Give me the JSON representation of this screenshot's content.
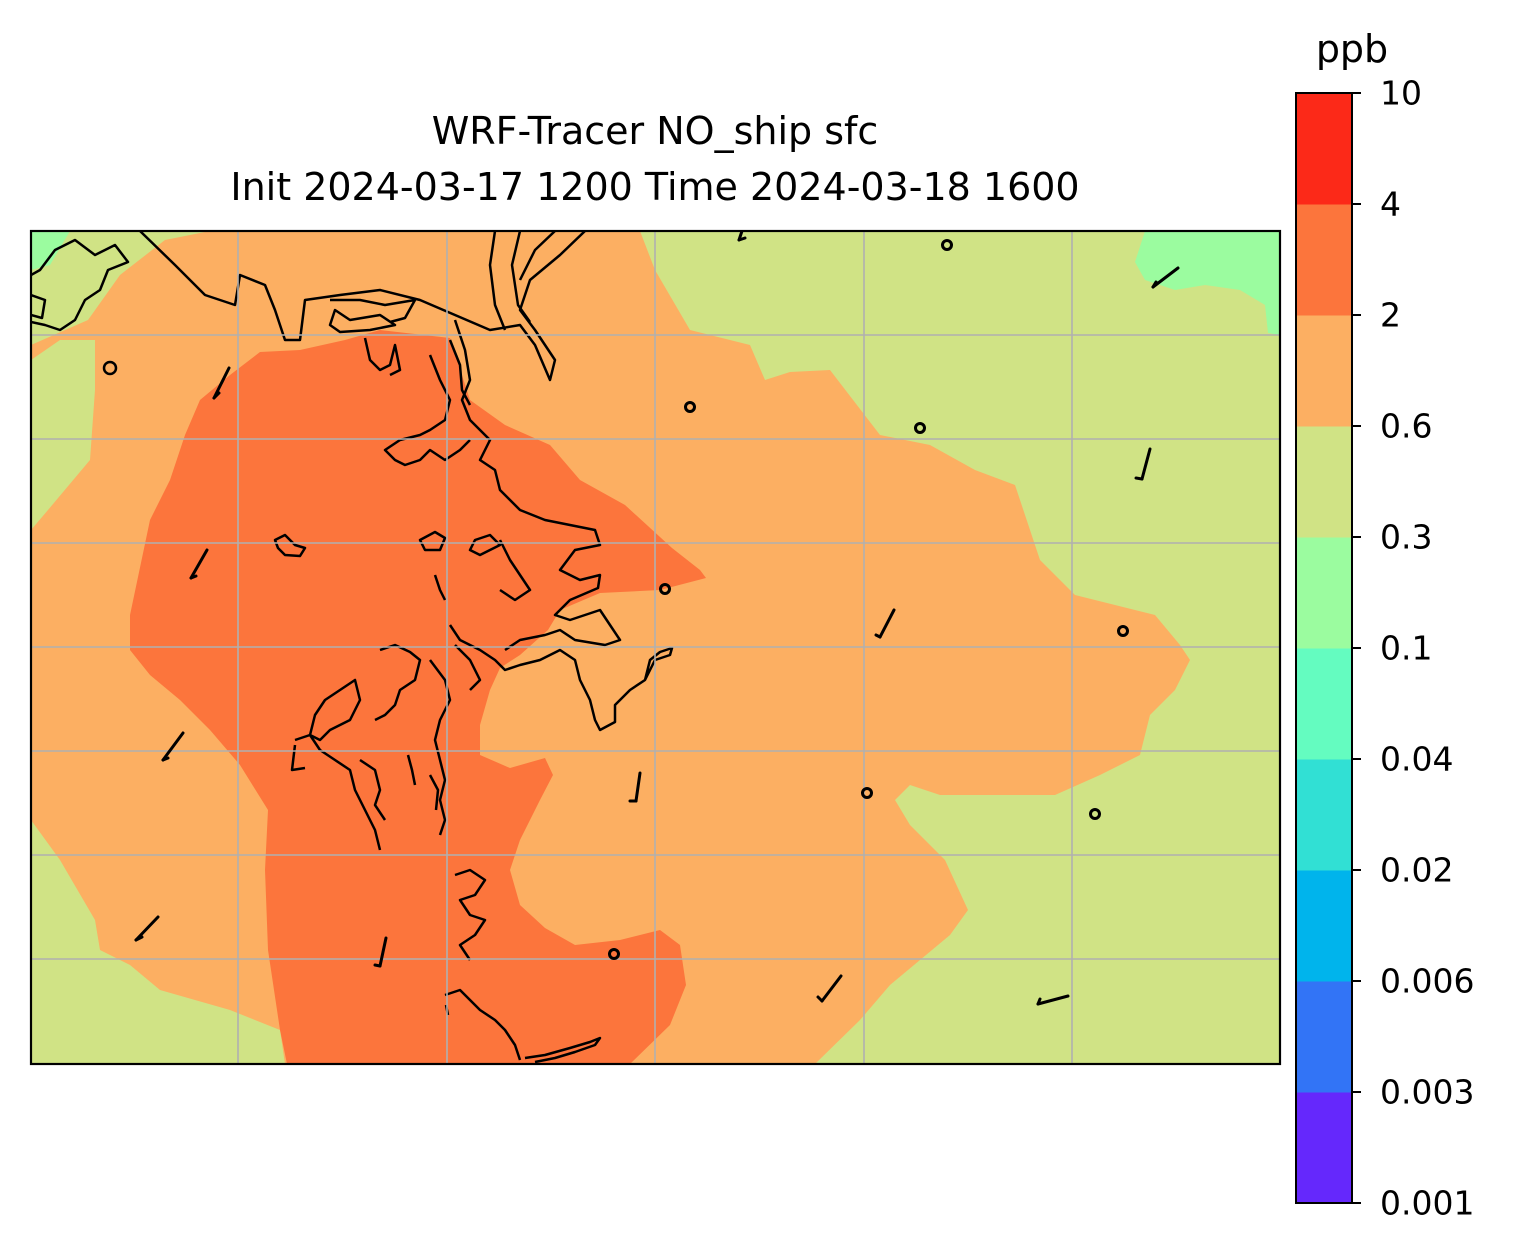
{
  "title": {
    "line1": "WRF-Tracer NO_ship sfc",
    "line2": "Init 2024-03-17 1200 Time 2024-03-18 1600"
  },
  "colorbar": {
    "unit": "ppb",
    "ticks": [
      "0.001",
      "0.003",
      "0.006",
      "0.02",
      "0.04",
      "0.1",
      "0.3",
      "0.6",
      "2",
      "4",
      "10"
    ],
    "colors": [
      "#6528fc",
      "#3274f6",
      "#00b4ec",
      "#31e0d4",
      "#64fcc0",
      "#9bfc9f",
      "#d0e385",
      "#fcaf62",
      "#fc753c",
      "#fc2918"
    ]
  },
  "map": {
    "contour_levels_shown": [
      "0.1",
      "0.3",
      "0.6",
      "2"
    ],
    "gridlines": true
  }
}
